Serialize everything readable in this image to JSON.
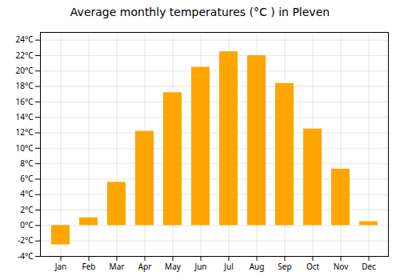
{
  "chart_data": {
    "type": "bar",
    "title": "Average monthly temperatures (°C ) in Pleven",
    "categories": [
      "Jan",
      "Feb",
      "Mar",
      "Apr",
      "May",
      "Jun",
      "Jul",
      "Aug",
      "Sep",
      "Oct",
      "Nov",
      "Dec"
    ],
    "values": [
      -2.5,
      1.0,
      5.6,
      12.2,
      17.2,
      20.5,
      22.5,
      22.0,
      18.4,
      12.5,
      7.3,
      0.5
    ],
    "color": "#FFA500",
    "ylim": [
      -4,
      25
    ],
    "yticks": [
      {
        "value": -4,
        "label": "-4°C"
      },
      {
        "value": -2,
        "label": "-2°C"
      },
      {
        "value": 0,
        "label": "0°C"
      },
      {
        "value": 2,
        "label": "2°C"
      },
      {
        "value": 4,
        "label": "4°C"
      },
      {
        "value": 6,
        "label": "6°C"
      },
      {
        "value": 8,
        "label": "8°C"
      },
      {
        "value": 10,
        "label": "10°C"
      },
      {
        "value": 12,
        "label": "12°C"
      },
      {
        "value": 14,
        "label": "14°C"
      },
      {
        "value": 16,
        "label": "16°C"
      },
      {
        "value": 18,
        "label": "18°C"
      },
      {
        "value": 20,
        "label": "20°C"
      },
      {
        "value": 22,
        "label": "22°C"
      },
      {
        "value": 24,
        "label": "24°C"
      }
    ],
    "grid": true
  }
}
